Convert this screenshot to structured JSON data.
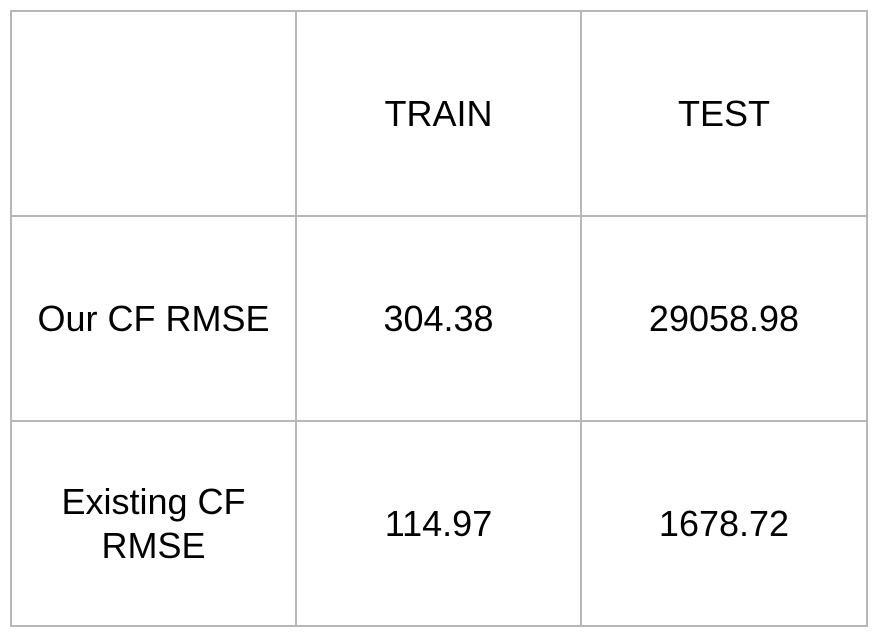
{
  "table": {
    "header": [
      "",
      "TRAIN",
      "TEST"
    ],
    "rows": [
      [
        "Our CF RMSE",
        "304.38",
        "29058.98"
      ],
      [
        "Existing CF RMSE",
        "114.97",
        "1678.72"
      ]
    ]
  },
  "colors": {
    "border": "#b7b7b7",
    "text": "#000000",
    "background": "#ffffff"
  }
}
